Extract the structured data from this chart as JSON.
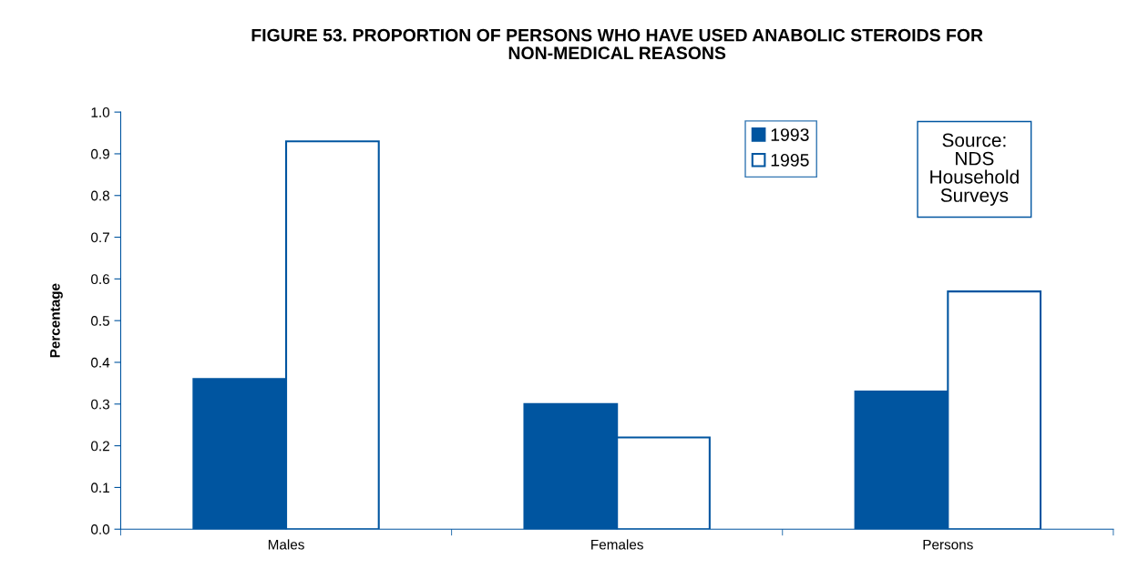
{
  "chart_data": {
    "type": "bar",
    "title": "FIGURE 53. PROPORTION OF PERSONS WHO HAVE USED ANABOLIC STEROIDS FOR\nNON-MEDICAL REASONS",
    "ylabel": "Percentage",
    "categories": [
      "Males",
      "Females",
      "Persons"
    ],
    "series": [
      {
        "name": "1993",
        "color": "#0055a0",
        "values": [
          0.36,
          0.3,
          0.33
        ]
      },
      {
        "name": "1995",
        "color": "#ffffff",
        "values": [
          0.93,
          0.22,
          0.57
        ]
      }
    ],
    "ylim": [
      0,
      1.0
    ],
    "yticks": [
      {
        "value": 0,
        "label": "0.0"
      },
      {
        "value": 0.1,
        "label": "0.1"
      },
      {
        "value": 0.2,
        "label": "0.2"
      },
      {
        "value": 0.3,
        "label": "0.3"
      },
      {
        "value": 0.4,
        "label": "0.4"
      },
      {
        "value": 0.5,
        "label": "0.5"
      },
      {
        "value": 0.6,
        "label": "0.6"
      },
      {
        "value": 0.7,
        "label": "0.7"
      },
      {
        "value": 0.8,
        "label": "0.8"
      },
      {
        "value": 0.9,
        "label": "0.9"
      },
      {
        "value": 1.0,
        "label": "1.0"
      }
    ],
    "grid": false,
    "legend": "top right",
    "annotations": [
      "Source:\nNDS\nHousehold\nSurveys"
    ]
  }
}
